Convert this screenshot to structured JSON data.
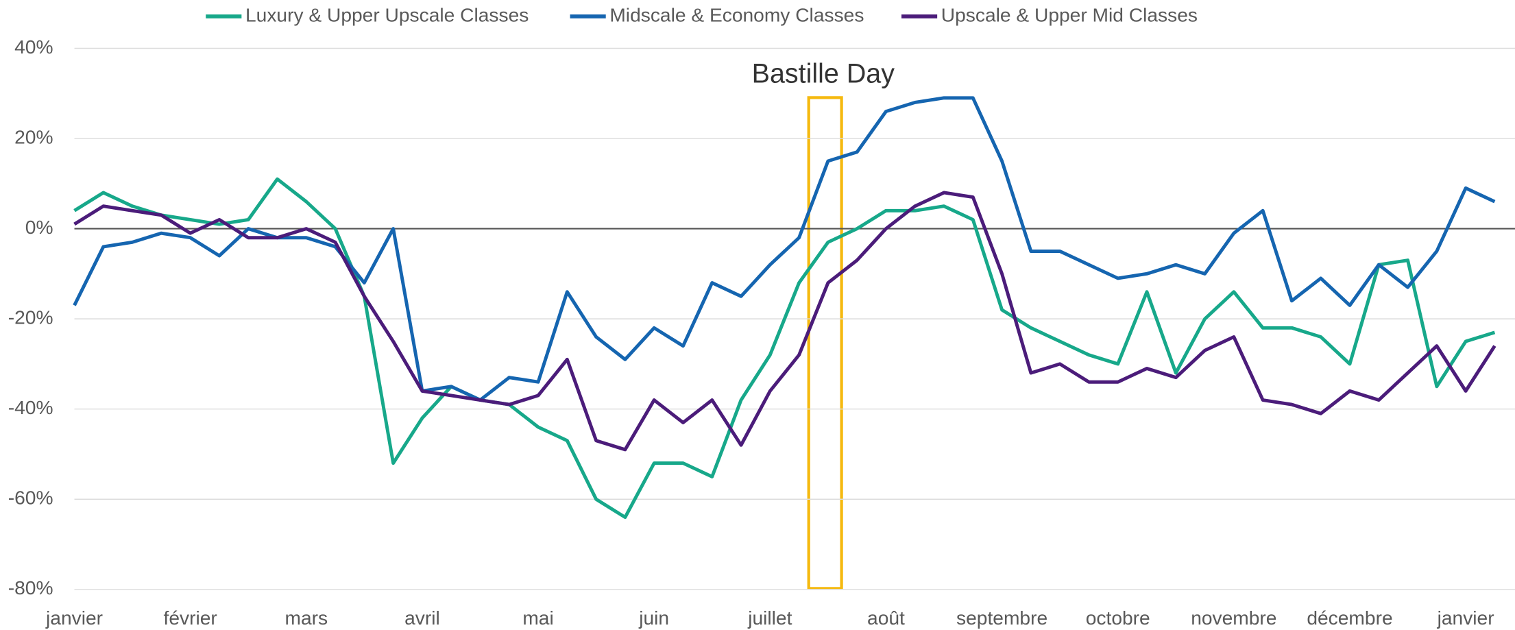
{
  "chart_data": {
    "type": "line",
    "annotation": "Bastille Day",
    "categories": [
      "janvier",
      null,
      null,
      null,
      "février",
      null,
      null,
      null,
      "mars",
      null,
      null,
      null,
      "avril",
      null,
      null,
      null,
      "mai",
      null,
      null,
      null,
      "juin",
      null,
      null,
      null,
      "juillet",
      null,
      null,
      null,
      "août",
      null,
      null,
      null,
      "septembre",
      null,
      null,
      null,
      "octobre",
      null,
      null,
      null,
      "novembre",
      null,
      null,
      null,
      "décembre",
      null,
      null,
      null,
      "janvier",
      null
    ],
    "series": [
      {
        "name": "Luxury & Upper Upscale Classes",
        "color": "#17a88a",
        "values": [
          4,
          8,
          5,
          3,
          2,
          1,
          2,
          11,
          6,
          0,
          -15,
          -52,
          -42,
          -35,
          -38,
          -39,
          -44,
          -47,
          -60,
          -64,
          -52,
          -52,
          -55,
          -38,
          -28,
          -12,
          -3,
          0,
          4,
          4,
          5,
          2,
          -18,
          -22,
          -25,
          -28,
          -30,
          -14,
          -32,
          -20,
          -14,
          -22,
          -22,
          -24,
          -30,
          -8,
          -7,
          -35,
          -25,
          -23
        ]
      },
      {
        "name": "Midscale & Economy Classes",
        "color": "#1565b0",
        "values": [
          -17,
          -4,
          -3,
          -1,
          -2,
          -6,
          0,
          -2,
          -2,
          -4,
          -12,
          0,
          -36,
          -35,
          -38,
          -33,
          -34,
          -14,
          -24,
          -29,
          -22,
          -26,
          -12,
          -15,
          -8,
          -2,
          15,
          17,
          26,
          28,
          29,
          29,
          15,
          -5,
          -5,
          -8,
          -11,
          -10,
          -8,
          -10,
          -1,
          4,
          -16,
          -11,
          -17,
          -8,
          -13,
          -5,
          9,
          6
        ]
      },
      {
        "name": "Upscale & Upper Mid Classes",
        "color": "#4b1c7a",
        "values": [
          1,
          5,
          4,
          3,
          -1,
          2,
          -2,
          -2,
          0,
          -3,
          -15,
          -25,
          -36,
          -37,
          -38,
          -39,
          -37,
          -29,
          -47,
          -49,
          -38,
          -43,
          -38,
          -48,
          -36,
          -28,
          -12,
          -7,
          0,
          5,
          8,
          7,
          -10,
          -32,
          -30,
          -34,
          -34,
          -31,
          -33,
          -27,
          -24,
          -38,
          -39,
          -41,
          -36,
          -38,
          -32,
          -26,
          -36,
          -26
        ]
      }
    ],
    "ylim": [
      -80,
      40
    ],
    "yticks": [
      {
        "value": -80,
        "label": "-80%"
      },
      {
        "value": -60,
        "label": "-60%"
      },
      {
        "value": -40,
        "label": "-40%"
      },
      {
        "value": -20,
        "label": "-20%"
      },
      {
        "value": 0,
        "label": "0%"
      },
      {
        "value": 20,
        "label": "20%"
      },
      {
        "value": 40,
        "label": "40%"
      }
    ],
    "grid": true
  }
}
